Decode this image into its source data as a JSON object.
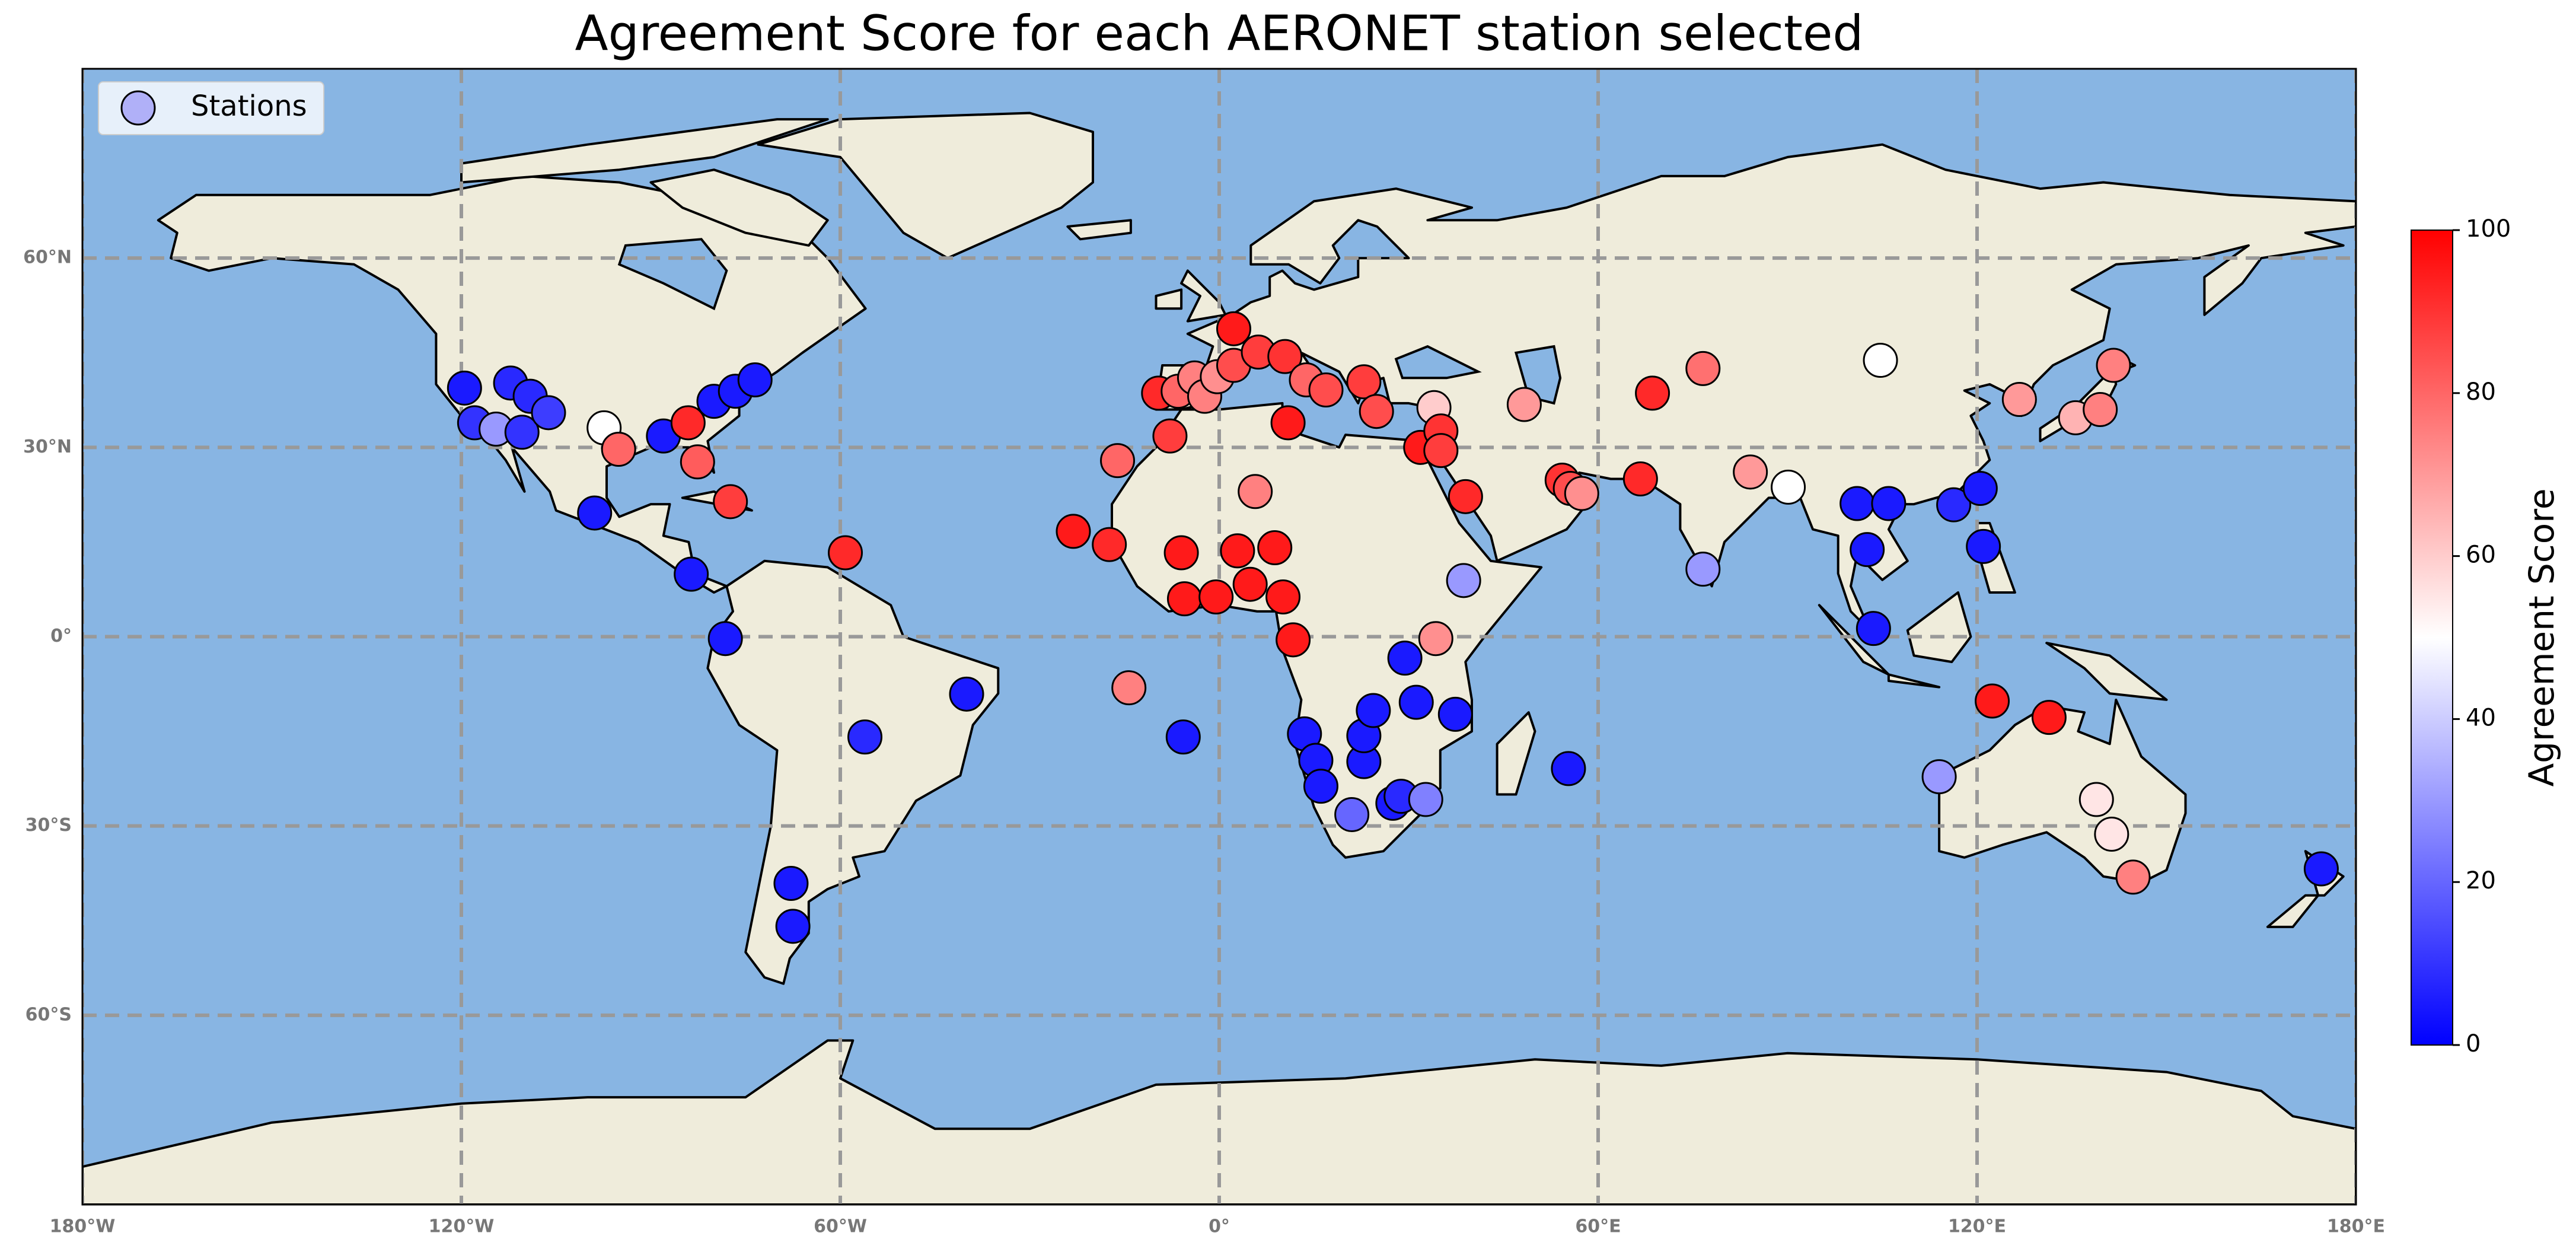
{
  "chart_data": {
    "type": "scatter",
    "title": "Agreement Score for each AERONET station selected",
    "xlim": [
      -180,
      180
    ],
    "ylim": [
      -90,
      90
    ],
    "xticks": [
      {
        "value": -180,
        "label": "180°W"
      },
      {
        "value": -120,
        "label": "120°W"
      },
      {
        "value": -60,
        "label": "60°W"
      },
      {
        "value": 0,
        "label": "0°"
      },
      {
        "value": 60,
        "label": "60°E"
      },
      {
        "value": 120,
        "label": "120°E"
      },
      {
        "value": 180,
        "label": "180°E"
      }
    ],
    "yticks": [
      {
        "value": -60,
        "label": "60°S"
      },
      {
        "value": -30,
        "label": "30°S"
      },
      {
        "value": 0,
        "label": "0°"
      },
      {
        "value": 30,
        "label": "30°N"
      },
      {
        "value": 60,
        "label": "60°N"
      }
    ],
    "grid": true,
    "legend": "upper left",
    "ocean_color": "#88b5e3",
    "land_color": "#efecdb",
    "series": [
      {
        "name": "Stations",
        "color": "#b0b0f8",
        "x": [
          -119.5,
          -117.9,
          -114.5,
          -112.2,
          -109.1,
          -110.4,
          -106.2,
          -97.4,
          -95.1,
          -88.0,
          -84.1,
          -82.6,
          -80.0,
          -76.6,
          -73.5,
          -77.4,
          -98.9,
          -83.6,
          -78.2,
          -59.2,
          -40.0,
          -56.1,
          -67.8,
          -67.5,
          -23.1,
          -17.4,
          -16.1,
          -14.3,
          -5.7,
          -7.8,
          -9.6,
          -6.5,
          -3.9,
          -2.3,
          -0.3,
          2.3,
          2.3,
          6.2,
          10.4,
          13.8,
          16.9,
          22.9,
          24.9,
          10.9,
          -6.0,
          -5.5,
          -0.5,
          2.9,
          4.9,
          8.8,
          10.1,
          11.7,
          5.7,
          13.5,
          15.3,
          16.1,
          22.9,
          22.9,
          24.4,
          29.4,
          31.2,
          37.4,
          21.0,
          27.5,
          28.8,
          32.7,
          55.3,
          34.3,
          38.7,
          34.0,
          31.9,
          35.1,
          35.1,
          39.0,
          48.3,
          54.3,
          55.6,
          57.4,
          66.7,
          68.6,
          76.6,
          76.6,
          84.1,
          90.1,
          104.7,
          101.0,
          106.0,
          102.6,
          103.6,
          116.3,
          120.5,
          121.0,
          126.7,
          135.6,
          139.5,
          141.6,
          122.4,
          131.4,
          114.0,
          138.9,
          141.3,
          144.7,
          174.5
        ],
        "values": [
          39.4,
          33.9,
          32.9,
          40.2,
          38.1,
          32.4,
          35.5,
          33.1,
          29.7,
          31.8,
          33.9,
          27.7,
          37.3,
          38.9,
          40.7,
          21.4,
          19.6,
          9.9,
          -0.3,
          13.3,
          -9.1,
          -15.9,
          -39.1,
          -45.9,
          16.7,
          14.6,
          27.9,
          -8.1,
          -15.9,
          31.8,
          38.6,
          38.9,
          41.0,
          38.1,
          41.2,
          43.0,
          48.8,
          45.1,
          44.4,
          40.7,
          39.1,
          40.4,
          35.7,
          33.9,
          13.3,
          6.0,
          6.3,
          13.6,
          8.3,
          14.1,
          6.3,
          -0.5,
          23.0,
          -15.4,
          -19.6,
          -23.7,
          -19.8,
          -15.7,
          -11.7,
          -3.4,
          -10.4,
          -12.3,
          -28.2,
          -26.4,
          -25.3,
          -25.8,
          -20.9,
          -0.3,
          8.9,
          36.3,
          30.0,
          32.6,
          29.5,
          22.2,
          36.8,
          24.8,
          23.5,
          22.7,
          25.0,
          38.6,
          42.5,
          10.7,
          26.1,
          23.7,
          43.8,
          21.1,
          21.1,
          13.8,
          1.3,
          20.9,
          23.5,
          14.3,
          37.6,
          34.7,
          36.0,
          43.0,
          -10.2,
          -12.8,
          -22.2,
          -25.8,
          -31.3,
          -38.1,
          -36.8
        ],
        "scores": [
          5,
          10,
          30,
          8,
          8,
          10,
          12,
          50,
          80,
          5,
          92,
          82,
          5,
          5,
          5,
          88,
          5,
          5,
          5,
          92,
          5,
          8,
          5,
          5,
          95,
          92,
          80,
          75,
          5,
          88,
          92,
          80,
          75,
          75,
          72,
          85,
          95,
          88,
          90,
          80,
          85,
          88,
          85,
          95,
          95,
          95,
          95,
          95,
          95,
          95,
          95,
          95,
          75,
          5,
          5,
          5,
          5,
          5,
          5,
          5,
          5,
          5,
          20,
          5,
          8,
          25,
          5,
          72,
          30,
          60,
          95,
          90,
          88,
          92,
          70,
          90,
          85,
          72,
          92,
          92,
          78,
          30,
          70,
          50,
          50,
          5,
          5,
          5,
          5,
          8,
          5,
          5,
          70,
          65,
          75,
          75,
          95,
          95,
          30,
          55,
          55,
          75,
          5
        ]
      }
    ],
    "colorbar": {
      "label": "Agreement Score",
      "lim": [
        0,
        100
      ],
      "ticks": [
        0,
        20,
        40,
        60,
        80,
        100
      ],
      "colormap": [
        "#0000ff",
        "#ffffff",
        "#ff0000"
      ]
    }
  }
}
